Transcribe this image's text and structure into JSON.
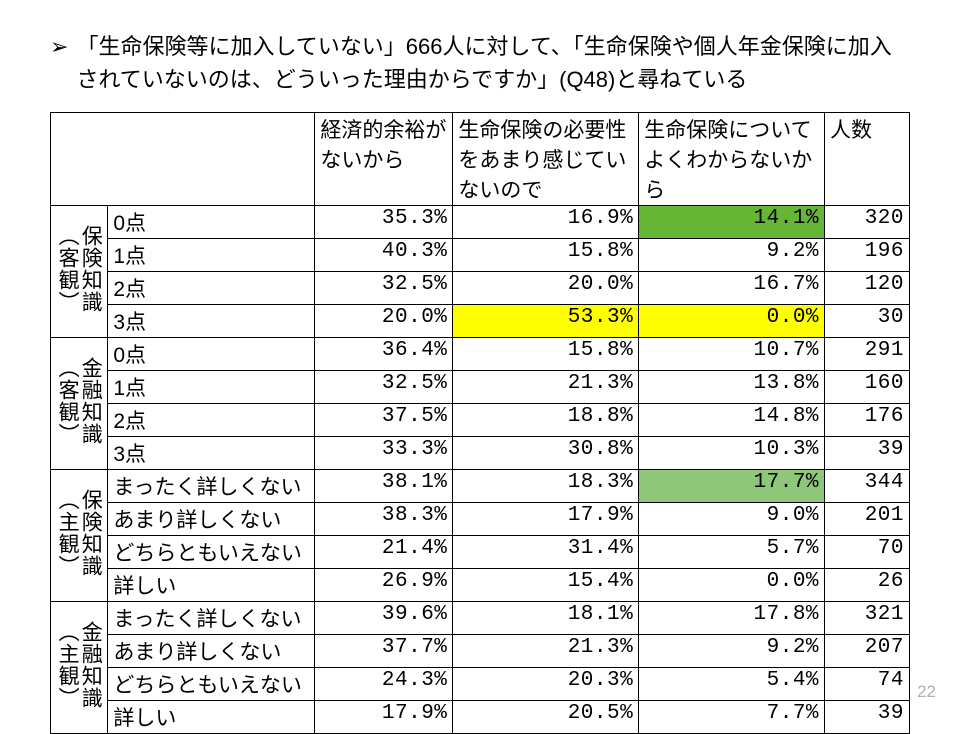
{
  "bullet": "「生命保険等に加入していない」666人に対して、「生命保険や個人年金保険に加入されていないのは、どういった理由からですか」(Q48)と尋ねている",
  "headers": {
    "col1": "経済的余裕がないから",
    "col2": "生命保険の必要性をあまり感じていないので",
    "col3": "生命保険についてよくわからないから",
    "col4": "人数"
  },
  "groups": [
    {
      "title_main": "保険知識",
      "title_sub": "（客観）",
      "rows": [
        {
          "label": "0点",
          "c1": "35.3%",
          "c2": "16.9%",
          "c3": "14.1%",
          "c4": "320",
          "hl_c3": "hl-green"
        },
        {
          "label": "1点",
          "c1": "40.3%",
          "c2": "15.8%",
          "c3": "9.2%",
          "c4": "196"
        },
        {
          "label": "2点",
          "c1": "32.5%",
          "c2": "20.0%",
          "c3": "16.7%",
          "c4": "120"
        },
        {
          "label": "3点",
          "c1": "20.0%",
          "c2": "53.3%",
          "c3": "0.0%",
          "c4": "30",
          "hl_c2": "hl-yellow",
          "hl_c3": "hl-yellow"
        }
      ]
    },
    {
      "title_main": "金融知識",
      "title_sub": "（客観）",
      "rows": [
        {
          "label": "0点",
          "c1": "36.4%",
          "c2": "15.8%",
          "c3": "10.7%",
          "c4": "291"
        },
        {
          "label": "1点",
          "c1": "32.5%",
          "c2": "21.3%",
          "c3": "13.8%",
          "c4": "160"
        },
        {
          "label": "2点",
          "c1": "37.5%",
          "c2": "18.8%",
          "c3": "14.8%",
          "c4": "176"
        },
        {
          "label": "3点",
          "c1": "33.3%",
          "c2": "30.8%",
          "c3": "10.3%",
          "c4": "39"
        }
      ]
    },
    {
      "title_main": "保険知識",
      "title_sub": "（主観）",
      "rows": [
        {
          "label": "まったく詳しくない",
          "c1": "38.1%",
          "c2": "18.3%",
          "c3": "17.7%",
          "c4": "344",
          "hl_c3": "hl-green2"
        },
        {
          "label": "あまり詳しくない",
          "c1": "38.3%",
          "c2": "17.9%",
          "c3": "9.0%",
          "c4": "201"
        },
        {
          "label": "どちらともいえない",
          "c1": "21.4%",
          "c2": "31.4%",
          "c3": "5.7%",
          "c4": "70"
        },
        {
          "label": "詳しい",
          "c1": "26.9%",
          "c2": "15.4%",
          "c3": "0.0%",
          "c4": "26"
        }
      ]
    },
    {
      "title_main": "金融知識",
      "title_sub": "（主観）",
      "rows": [
        {
          "label": "まったく詳しくない",
          "c1": "39.6%",
          "c2": "18.1%",
          "c3": "17.8%",
          "c4": "321"
        },
        {
          "label": "あまり詳しくない",
          "c1": "37.7%",
          "c2": "21.3%",
          "c3": "9.2%",
          "c4": "207"
        },
        {
          "label": "どちらともいえない",
          "c1": "24.3%",
          "c2": "20.3%",
          "c3": "5.4%",
          "c4": "74"
        },
        {
          "label": "詳しい",
          "c1": "17.9%",
          "c2": "20.5%",
          "c3": "7.7%",
          "c4": "39"
        }
      ]
    }
  ],
  "page_number": "22"
}
